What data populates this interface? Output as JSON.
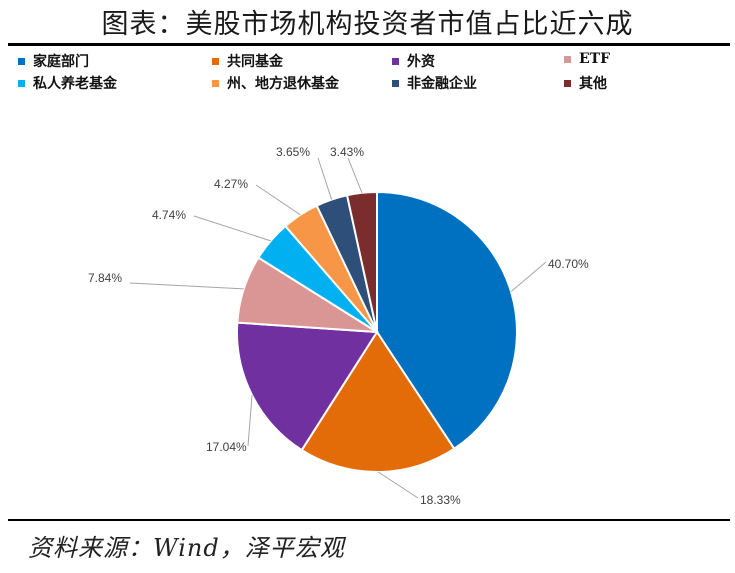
{
  "title": "图表：美股市场机构投资者市值占比近六成",
  "source": "资料来源：Wind，泽平宏观",
  "chart_data": {
    "type": "pie",
    "title": "图表：美股市场机构投资者市值占比近六成",
    "legend_position": "top",
    "slices": [
      {
        "name": "家庭部门",
        "value": 40.7,
        "label": "40.70%",
        "color": "#0070C0"
      },
      {
        "name": "共同基金",
        "value": 18.33,
        "label": "18.33%",
        "color": "#E36C09"
      },
      {
        "name": "外资",
        "value": 17.04,
        "label": "17.04%",
        "color": "#7030A0"
      },
      {
        "name": "ETF",
        "value": 7.84,
        "label": "7.84%",
        "color": "#D99694"
      },
      {
        "name": "私人养老基金",
        "value": 4.74,
        "label": "4.74%",
        "color": "#00B0F0"
      },
      {
        "name": "州、地方退休基金",
        "value": 4.27,
        "label": "4.27%",
        "color": "#F79646"
      },
      {
        "name": "非金融企业",
        "value": 3.65,
        "label": "3.65%",
        "color": "#2E4F7A"
      },
      {
        "name": "其他",
        "value": 3.43,
        "label": "3.43%",
        "color": "#7B2C2C"
      }
    ]
  }
}
